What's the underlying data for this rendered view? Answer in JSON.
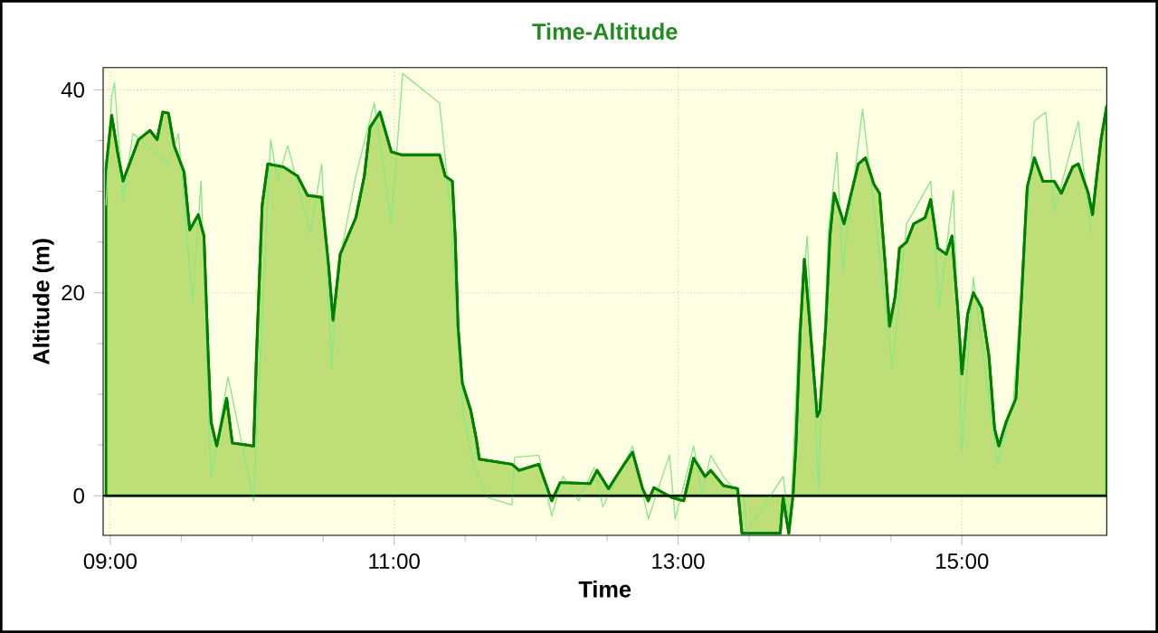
{
  "chart_data": {
    "type": "area",
    "title": "Time-Altitude",
    "xlabel": "Time",
    "ylabel": "Altitude (m)",
    "xlim": [
      8.95,
      16.02
    ],
    "ylim": [
      -3.9,
      42.2
    ],
    "xticks": [
      {
        "value": 9,
        "label": "09:00"
      },
      {
        "value": 11,
        "label": "11:00"
      },
      {
        "value": 13,
        "label": "13:00"
      },
      {
        "value": 15,
        "label": "15:00"
      }
    ],
    "yticks": [
      0,
      20,
      40
    ],
    "grid": true,
    "ref_lines": [
      {
        "axis": "y",
        "value": 0,
        "color": "#000000"
      }
    ],
    "series": [
      {
        "color": "#008000",
        "x": [
          8.97,
          9.01,
          9.05,
          9.09,
          9.2,
          9.28,
          9.33,
          9.37,
          9.41,
          9.45,
          9.52,
          9.56,
          9.62,
          9.66,
          9.69,
          9.71,
          9.75,
          9.82,
          9.86,
          10.01,
          10.03,
          10.07,
          10.11,
          10.22,
          10.32,
          10.39,
          10.49,
          10.54,
          10.57,
          10.62,
          10.73,
          10.79,
          10.83,
          10.9,
          10.98,
          11.05,
          11.32,
          11.36,
          11.41,
          11.43,
          11.45,
          11.48,
          11.54,
          11.58,
          11.6,
          11.83,
          11.88,
          12.02,
          12.11,
          12.17,
          12.38,
          12.43,
          12.51,
          12.62,
          12.68,
          12.75,
          12.79,
          12.83,
          12.96,
          13.04,
          13.11,
          13.19,
          13.23,
          13.32,
          13.42,
          13.45,
          13.7,
          13.72,
          13.74,
          13.78,
          13.81,
          13.83,
          13.86,
          13.89,
          13.93,
          13.98,
          14.0,
          14.04,
          14.07,
          14.1,
          14.17,
          14.21,
          14.27,
          14.32,
          14.38,
          14.42,
          14.46,
          14.49,
          14.53,
          14.56,
          14.61,
          14.66,
          14.74,
          14.78,
          14.83,
          14.89,
          14.93,
          14.97,
          15.0,
          15.04,
          15.08,
          15.14,
          15.19,
          15.23,
          15.26,
          15.31,
          15.38,
          15.42,
          15.46,
          15.51,
          15.57,
          15.65,
          15.7,
          15.78,
          15.82,
          15.89,
          15.92,
          15.95,
          15.98,
          16.02
        ],
        "values": [
          32.2,
          37.5,
          34,
          31,
          35.1,
          36,
          35.1,
          37.8,
          37.7,
          34.5,
          31.9,
          26.2,
          27.7,
          25.6,
          13.8,
          7.3,
          4.9,
          9.6,
          5.2,
          4.9,
          13.8,
          28.6,
          32.7,
          32.4,
          31.5,
          29.6,
          29.4,
          22.4,
          17.3,
          23.8,
          27.4,
          31.5,
          36.3,
          37.8,
          33.9,
          33.6,
          33.6,
          31.5,
          31,
          25.6,
          16.7,
          11.1,
          8.4,
          5.5,
          3.6,
          3.1,
          2.5,
          3.1,
          -0.5,
          1.3,
          1.2,
          2.5,
          0.7,
          3.1,
          4.3,
          0.7,
          -0.5,
          0.8,
          -0.2,
          -0.5,
          3.7,
          1.9,
          2.5,
          1.0,
          0.7,
          -3.7,
          -3.7,
          -3.7,
          -0.2,
          -3.7,
          0.1,
          4.9,
          16.1,
          23.3,
          16.7,
          7.8,
          8.4,
          16.7,
          25.6,
          29.8,
          26.8,
          29.2,
          32.7,
          33.3,
          30.7,
          29.8,
          22.7,
          16.7,
          19.7,
          24.4,
          25.0,
          26.8,
          27.4,
          29.2,
          24.4,
          23.8,
          25.6,
          18.5,
          12.0,
          17.9,
          20.0,
          18.5,
          13.8,
          6.6,
          4.9,
          7.2,
          9.6,
          19.7,
          30.4,
          33.3,
          31,
          31,
          29.8,
          32.4,
          32.7,
          29.8,
          27.7,
          31.5,
          35.1,
          38.4
        ]
      },
      {
        "type": "line",
        "color": "#88e888",
        "x": [
          8.97,
          9.01,
          9.03,
          9.09,
          9.16,
          9.37,
          9.41,
          9.48,
          9.58,
          9.64,
          9.71,
          9.83,
          10.01,
          10.13,
          10.18,
          10.25,
          10.41,
          10.49,
          10.56,
          10.6,
          10.73,
          10.86,
          10.98,
          11.06,
          11.32,
          11.39,
          11.43,
          11.49,
          11.56,
          11.66,
          11.83,
          11.85,
          12.02,
          12.11,
          12.19,
          12.3,
          12.41,
          12.47,
          12.68,
          12.79,
          12.94,
          12.98,
          13.11,
          13.17,
          13.23,
          13.32,
          13.47,
          13.48,
          13.74,
          13.79,
          13.85,
          13.91,
          13.99,
          14.06,
          14.12,
          14.16,
          14.3,
          14.51,
          14.61,
          14.78,
          14.84,
          14.94,
          15.0,
          15.08,
          15.25,
          15.36,
          15.51,
          15.59,
          15.65,
          15.82,
          15.91
        ],
        "values": [
          28.6,
          39.3,
          40.7,
          29.2,
          35.7,
          null,
          32.7,
          35.7,
          19.1,
          31,
          1.9,
          11.7,
          -0.5,
          35.1,
          31,
          34.5,
          25.9,
          32.7,
          12.6,
          22.1,
          31.5,
          38.7,
          26.8,
          41.6,
          38.7,
          29.2,
          19.7,
          7.8,
          3.1,
          -0.2,
          -0.9,
          3.8,
          4.0,
          -2.0,
          1.9,
          -0.5,
          2.8,
          -1.1,
          4.9,
          -2.3,
          4.0,
          -2.3,
          4.9,
          0.1,
          4.0,
          1.9,
          -0.5,
          -3.7,
          1.9,
          -3.4,
          16.1,
          25.6,
          0.7,
          26.2,
          33.9,
          22.1,
          38.1,
          12.6,
          26.8,
          31,
          18.5,
          30.1,
          4.3,
          21.5,
          3.1,
          9.0,
          36.9,
          37.8,
          28.0,
          36.9,
          25.6
        ]
      }
    ]
  }
}
